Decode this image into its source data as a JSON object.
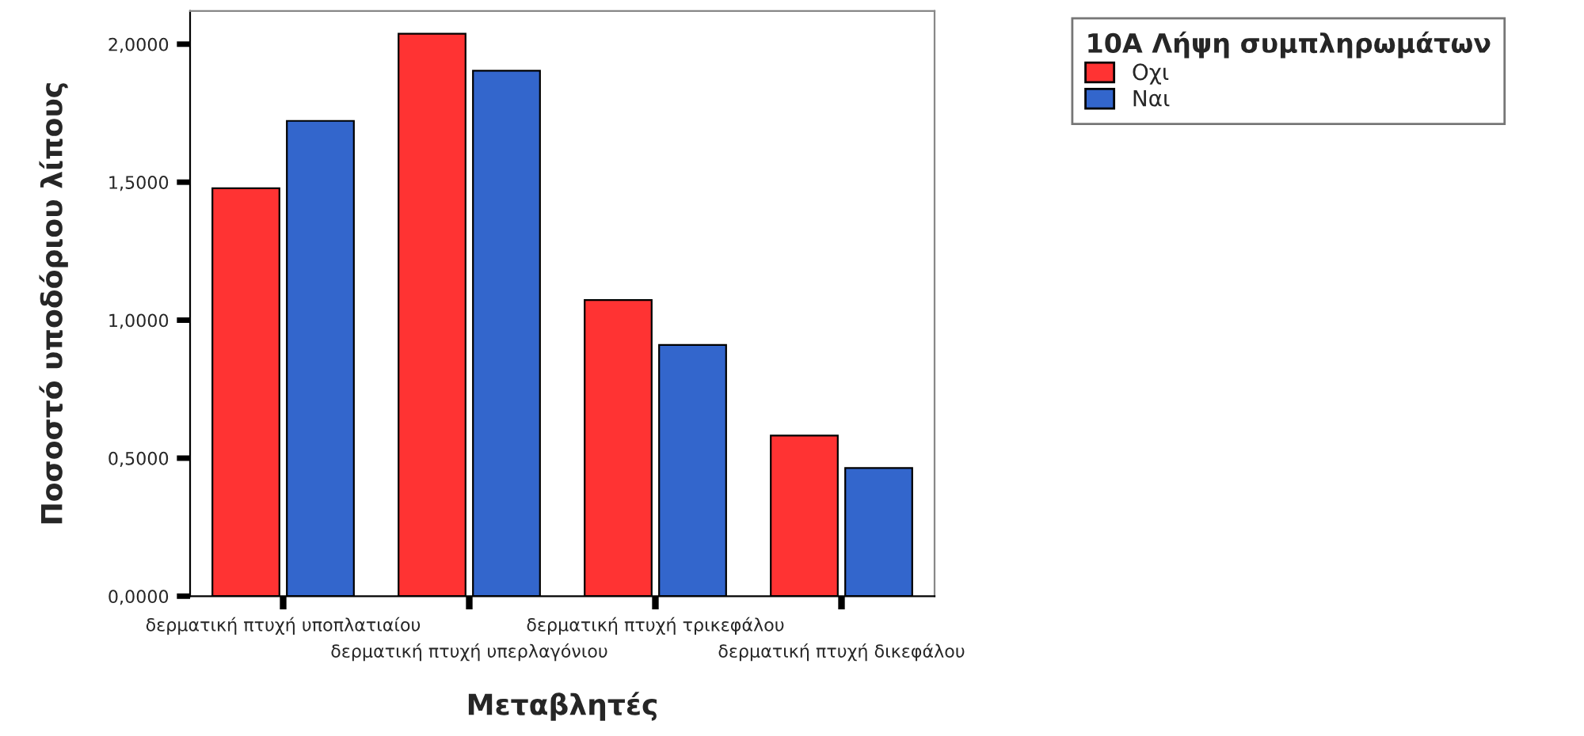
{
  "chart_data": {
    "type": "bar",
    "categories": [
      "δερματική πτυχή υποπλατιαίου",
      "δερματική πτυχή υπερλαγόνιου",
      "δερματική πτυχή τρικεφάλου",
      "δερματική πτυχή δικεφάλου"
    ],
    "series": [
      {
        "name": "Οχι",
        "color": "#ff3333",
        "values": [
          1.478,
          2.038,
          1.073,
          0.582
        ]
      },
      {
        "name": "Ναι",
        "color": "#3366cc",
        "values": [
          1.722,
          1.904,
          0.91,
          0.464
        ]
      }
    ],
    "xlabel": "Μεταβλητές",
    "ylabel": "Ποσοστό υποδόριου λίπους",
    "legend_title": "10A Λήψη συμπληρωμάτων",
    "ylim": [
      0,
      2.12
    ],
    "yticks": [
      {
        "value": 0,
        "label": "0,0000"
      },
      {
        "value": 0.5,
        "label": "0,5000"
      },
      {
        "value": 1,
        "label": "1,0000"
      },
      {
        "value": 1.5,
        "label": "1,5000"
      },
      {
        "value": 2,
        "label": "2,0000"
      }
    ],
    "legend": "top right",
    "grid": false
  }
}
